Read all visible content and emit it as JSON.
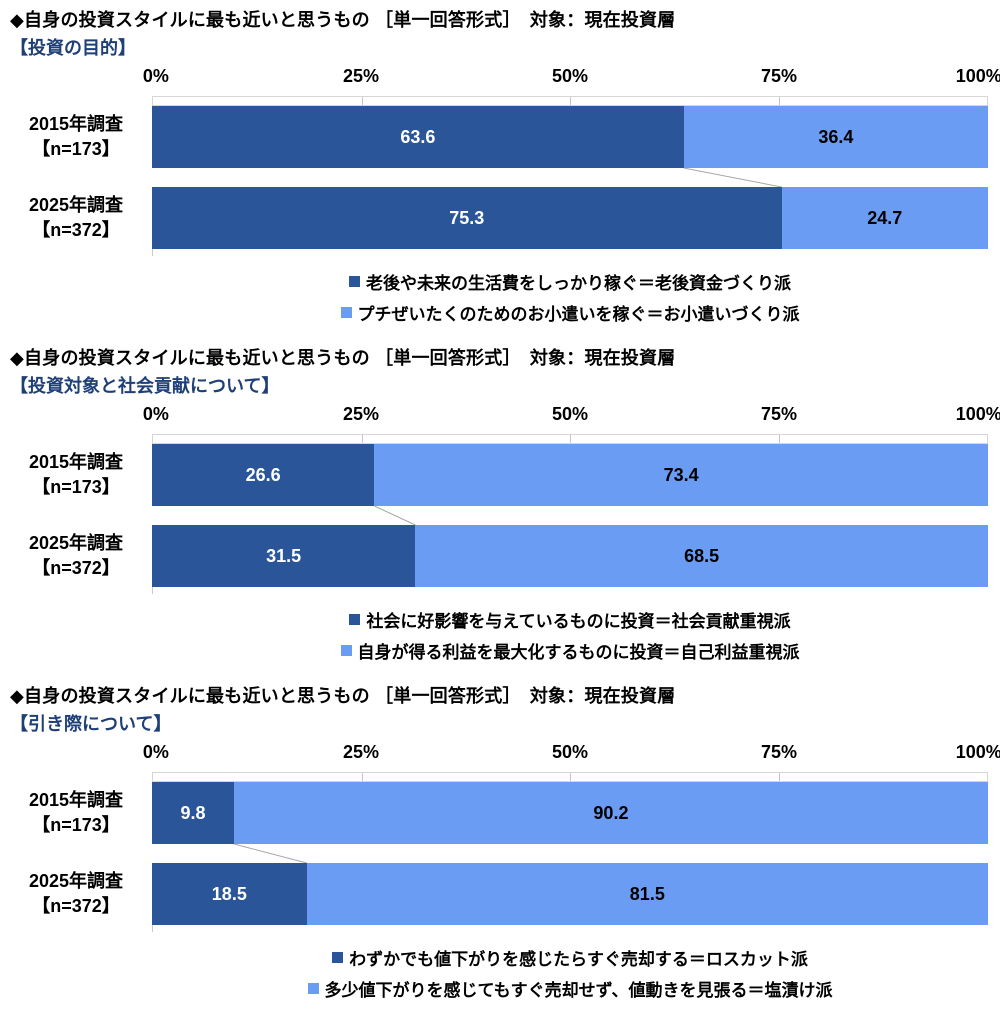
{
  "colors": {
    "dark_blue": "#2A5699",
    "light_blue": "#6B9CF4",
    "subtitle_navy": "#1F3F77",
    "connector_gray": "#A6A6A6"
  },
  "chart_data": [
    {
      "type": "bar",
      "orientation": "horizontal",
      "stacked": true,
      "title": "◆自身の投資スタイルに最も近いと思うもの ［単一回答形式］　対象：現在投資層",
      "subtitle": "【投資の目的】",
      "categories": [
        "2015年調査【n=173】",
        "2025年調査【n=372】"
      ],
      "category_lines": [
        [
          "2015年調査",
          "【n=173】"
        ],
        [
          "2025年調査",
          "【n=372】"
        ]
      ],
      "series": [
        {
          "name": "老後や未来の生活費をしっかり稼ぐ＝老後資金づくり派",
          "values": [
            63.6,
            75.3
          ],
          "color": "#2A5699"
        },
        {
          "name": "プチぜいたくのためのお小遣いを稼ぐ＝お小遣いづくり派",
          "values": [
            36.4,
            24.7
          ],
          "color": "#6B9CF4"
        }
      ],
      "xlim": [
        0,
        100
      ],
      "x_ticks": [
        "0%",
        "25%",
        "50%",
        "75%",
        "100%"
      ],
      "legend_position": "bottom"
    },
    {
      "type": "bar",
      "orientation": "horizontal",
      "stacked": true,
      "title": "◆自身の投資スタイルに最も近いと思うもの ［単一回答形式］　対象：現在投資層",
      "subtitle": "【投資対象と社会貢献について】",
      "categories": [
        "2015年調査【n=173】",
        "2025年調査【n=372】"
      ],
      "category_lines": [
        [
          "2015年調査",
          "【n=173】"
        ],
        [
          "2025年調査",
          "【n=372】"
        ]
      ],
      "series": [
        {
          "name": "社会に好影響を与えているものに投資＝社会貢献重視派",
          "values": [
            26.6,
            31.5
          ],
          "color": "#2A5699"
        },
        {
          "name": "自身が得る利益を最大化するものに投資＝自己利益重視派",
          "values": [
            73.4,
            68.5
          ],
          "color": "#6B9CF4"
        }
      ],
      "xlim": [
        0,
        100
      ],
      "x_ticks": [
        "0%",
        "25%",
        "50%",
        "75%",
        "100%"
      ],
      "legend_position": "bottom"
    },
    {
      "type": "bar",
      "orientation": "horizontal",
      "stacked": true,
      "title": "◆自身の投資スタイルに最も近いと思うもの ［単一回答形式］　対象：現在投資層",
      "subtitle": "【引き際について】",
      "categories": [
        "2015年調査【n=173】",
        "2025年調査【n=372】"
      ],
      "category_lines": [
        [
          "2015年調査",
          "【n=173】"
        ],
        [
          "2025年調査",
          "【n=372】"
        ]
      ],
      "series": [
        {
          "name": "わずかでも値下がりを感じたらすぐ売却する＝ロスカット派",
          "values": [
            9.8,
            18.5
          ],
          "color": "#2A5699"
        },
        {
          "name": "多少値下がりを感じてもすぐ売却せず、値動きを見張る＝塩漬け派",
          "values": [
            90.2,
            81.5
          ],
          "color": "#6B9CF4"
        }
      ],
      "xlim": [
        0,
        100
      ],
      "x_ticks": [
        "0%",
        "25%",
        "50%",
        "75%",
        "100%"
      ],
      "legend_position": "bottom"
    }
  ]
}
